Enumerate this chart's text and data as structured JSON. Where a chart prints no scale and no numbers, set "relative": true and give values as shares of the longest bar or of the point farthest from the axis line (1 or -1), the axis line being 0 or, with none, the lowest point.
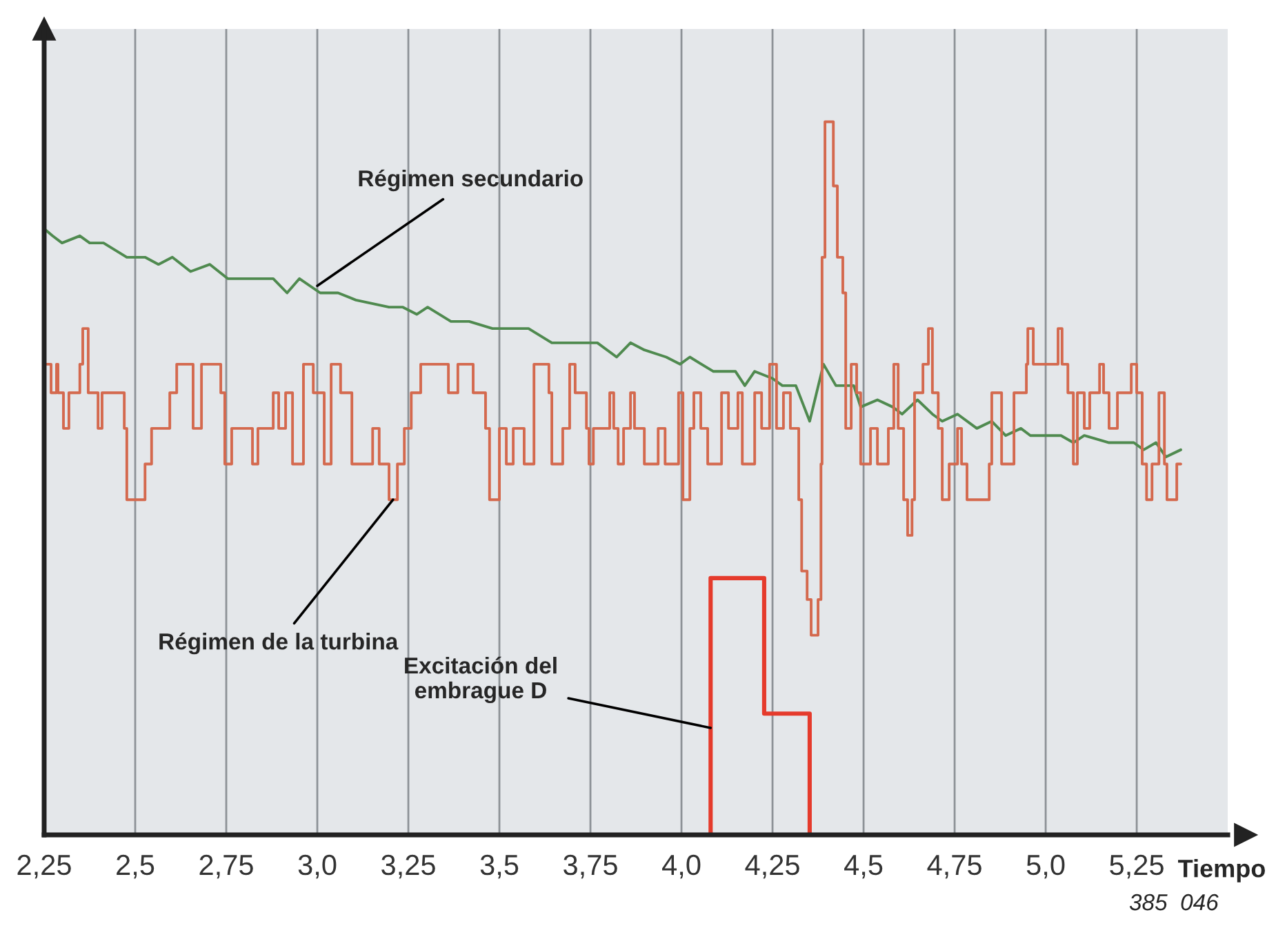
{
  "chart_data": {
    "type": "line",
    "relative": true,
    "xlabel": "Tiempo",
    "grid": "x",
    "tick_labels": "x",
    "xlim": [
      2.25,
      5.5
    ],
    "xticks": [
      {
        "value": 2.25,
        "label": "2,25"
      },
      {
        "value": 2.5,
        "label": "2,5"
      },
      {
        "value": 2.75,
        "label": "2,75"
      },
      {
        "value": 3.0,
        "label": "3,0"
      },
      {
        "value": 3.25,
        "label": "3,25"
      },
      {
        "value": 3.5,
        "label": "3,5"
      },
      {
        "value": 3.75,
        "label": "3,75"
      },
      {
        "value": 4.0,
        "label": "4,0"
      },
      {
        "value": 4.25,
        "label": "4,25"
      },
      {
        "value": 4.5,
        "label": "4,5"
      },
      {
        "value": 4.75,
        "label": "4,75"
      },
      {
        "value": 5.0,
        "label": "5,0"
      },
      {
        "value": 5.25,
        "label": "5,25"
      }
    ],
    "series": [
      {
        "color": "#4f8a4f",
        "x": [
          2.25,
          2.273,
          2.299,
          2.348,
          2.375,
          2.413,
          2.477,
          2.527,
          2.564,
          2.602,
          2.652,
          2.705,
          2.754,
          2.83,
          2.879,
          2.917,
          2.951,
          3.008,
          3.057,
          3.106,
          3.197,
          3.235,
          3.273,
          3.303,
          3.367,
          3.417,
          3.481,
          3.519,
          3.58,
          3.644,
          3.701,
          3.769,
          3.822,
          3.86,
          3.898,
          3.958,
          3.996,
          4.023,
          4.087,
          4.148,
          4.174,
          4.201,
          4.25,
          4.277,
          4.314,
          4.352,
          4.39,
          4.424,
          4.473,
          4.492,
          4.538,
          4.58,
          4.606,
          4.648,
          4.689,
          4.716,
          4.758,
          4.811,
          4.852,
          4.89,
          4.932,
          4.958,
          5.042,
          5.076,
          5.106,
          5.174,
          5.242,
          5.269,
          5.303,
          5.33,
          5.371
        ],
        "values": [
          0.85,
          0.84,
          0.83,
          0.84,
          0.83,
          0.83,
          0.81,
          0.81,
          0.8,
          0.81,
          0.79,
          0.8,
          0.78,
          0.78,
          0.78,
          0.76,
          0.78,
          0.76,
          0.76,
          0.75,
          0.74,
          0.74,
          0.73,
          0.74,
          0.72,
          0.72,
          0.71,
          0.71,
          0.71,
          0.69,
          0.69,
          0.69,
          0.67,
          0.69,
          0.68,
          0.67,
          0.66,
          0.67,
          0.65,
          0.65,
          0.63,
          0.65,
          0.64,
          0.63,
          0.63,
          0.58,
          0.66,
          0.63,
          0.63,
          0.6,
          0.61,
          0.6,
          0.59,
          0.61,
          0.59,
          0.58,
          0.59,
          0.57,
          0.58,
          0.56,
          0.57,
          0.56,
          0.56,
          0.55,
          0.56,
          0.55,
          0.55,
          0.54,
          0.55,
          0.53,
          0.54
        ]
      },
      {
        "type": "step",
        "color": "#d4694e",
        "x": [
          2.25,
          2.269,
          2.284,
          2.288,
          2.303,
          2.318,
          2.348,
          2.356,
          2.371,
          2.398,
          2.409,
          2.47,
          2.477,
          2.527,
          2.545,
          2.595,
          2.614,
          2.659,
          2.682,
          2.735,
          2.746,
          2.765,
          2.822,
          2.837,
          2.879,
          2.894,
          2.913,
          2.932,
          2.962,
          2.989,
          3.019,
          3.038,
          3.064,
          3.095,
          3.152,
          3.17,
          3.197,
          3.22,
          3.239,
          3.258,
          3.284,
          3.36,
          3.386,
          3.428,
          3.462,
          3.473,
          3.5,
          3.519,
          3.538,
          3.568,
          3.595,
          3.636,
          3.644,
          3.674,
          3.693,
          3.708,
          3.739,
          3.746,
          3.758,
          3.803,
          3.814,
          3.826,
          3.841,
          3.86,
          3.871,
          3.898,
          3.936,
          3.955,
          3.992,
          4.004,
          4.023,
          4.034,
          4.053,
          4.072,
          4.11,
          4.129,
          4.155,
          4.167,
          4.201,
          4.22,
          4.242,
          4.261,
          4.28,
          4.299,
          4.322,
          4.33,
          4.345,
          4.356,
          4.375,
          4.383,
          4.386,
          4.394,
          4.417,
          4.428,
          4.443,
          4.451,
          4.466,
          4.481,
          4.492,
          4.519,
          4.538,
          4.568,
          4.583,
          4.595,
          4.61,
          4.621,
          4.633,
          4.64,
          4.663,
          4.678,
          4.689,
          4.705,
          4.716,
          4.735,
          4.758,
          4.769,
          4.784,
          4.845,
          4.852,
          4.879,
          4.913,
          4.947,
          4.951,
          4.966,
          5.034,
          5.045,
          5.061,
          5.076,
          5.087,
          5.106,
          5.121,
          5.148,
          5.159,
          5.174,
          5.197,
          5.235,
          5.25,
          5.265,
          5.277,
          5.292,
          5.311,
          5.326,
          5.333,
          5.36,
          5.371
        ],
        "values": [
          0.66,
          0.62,
          0.66,
          0.62,
          0.57,
          0.62,
          0.66,
          0.71,
          0.62,
          0.57,
          0.62,
          0.57,
          0.47,
          0.52,
          0.57,
          0.62,
          0.66,
          0.57,
          0.66,
          0.62,
          0.52,
          0.57,
          0.52,
          0.57,
          0.62,
          0.57,
          0.62,
          0.52,
          0.66,
          0.62,
          0.52,
          0.66,
          0.62,
          0.52,
          0.57,
          0.52,
          0.47,
          0.52,
          0.57,
          0.62,
          0.66,
          0.62,
          0.66,
          0.62,
          0.57,
          0.47,
          0.57,
          0.52,
          0.57,
          0.52,
          0.66,
          0.62,
          0.52,
          0.57,
          0.66,
          0.62,
          0.57,
          0.52,
          0.57,
          0.62,
          0.57,
          0.52,
          0.57,
          0.62,
          0.57,
          0.52,
          0.57,
          0.52,
          0.62,
          0.47,
          0.57,
          0.62,
          0.57,
          0.52,
          0.62,
          0.57,
          0.62,
          0.52,
          0.62,
          0.57,
          0.66,
          0.57,
          0.62,
          0.57,
          0.47,
          0.37,
          0.33,
          0.28,
          0.33,
          0.52,
          0.81,
          1.0,
          0.91,
          0.81,
          0.76,
          0.57,
          0.66,
          0.62,
          0.52,
          0.57,
          0.52,
          0.57,
          0.66,
          0.57,
          0.47,
          0.42,
          0.47,
          0.62,
          0.66,
          0.71,
          0.62,
          0.57,
          0.47,
          0.52,
          0.57,
          0.52,
          0.47,
          0.52,
          0.62,
          0.52,
          0.62,
          0.66,
          0.71,
          0.66,
          0.71,
          0.66,
          0.62,
          0.52,
          0.62,
          0.57,
          0.62,
          0.66,
          0.62,
          0.57,
          0.62,
          0.66,
          0.62,
          0.52,
          0.47,
          0.52,
          0.62,
          0.52,
          0.47,
          0.52,
          0.52
        ]
      },
      {
        "type": "step",
        "color": "#e53b2c",
        "x": [
          4.08,
          4.08,
          4.227,
          4.352
        ],
        "values": [
          0,
          0.36,
          0.17,
          0
        ]
      }
    ],
    "annotations": [
      {
        "text": "Régimen secundario",
        "x": 3.0,
        "y": 0.77
      },
      {
        "text": "Régimen de la turbina",
        "x": 3.208,
        "y": 0.47
      },
      {
        "text": "Excitación del\nembrague D",
        "x": 4.08,
        "y": 0.15
      },
      "385  046"
    ]
  }
}
